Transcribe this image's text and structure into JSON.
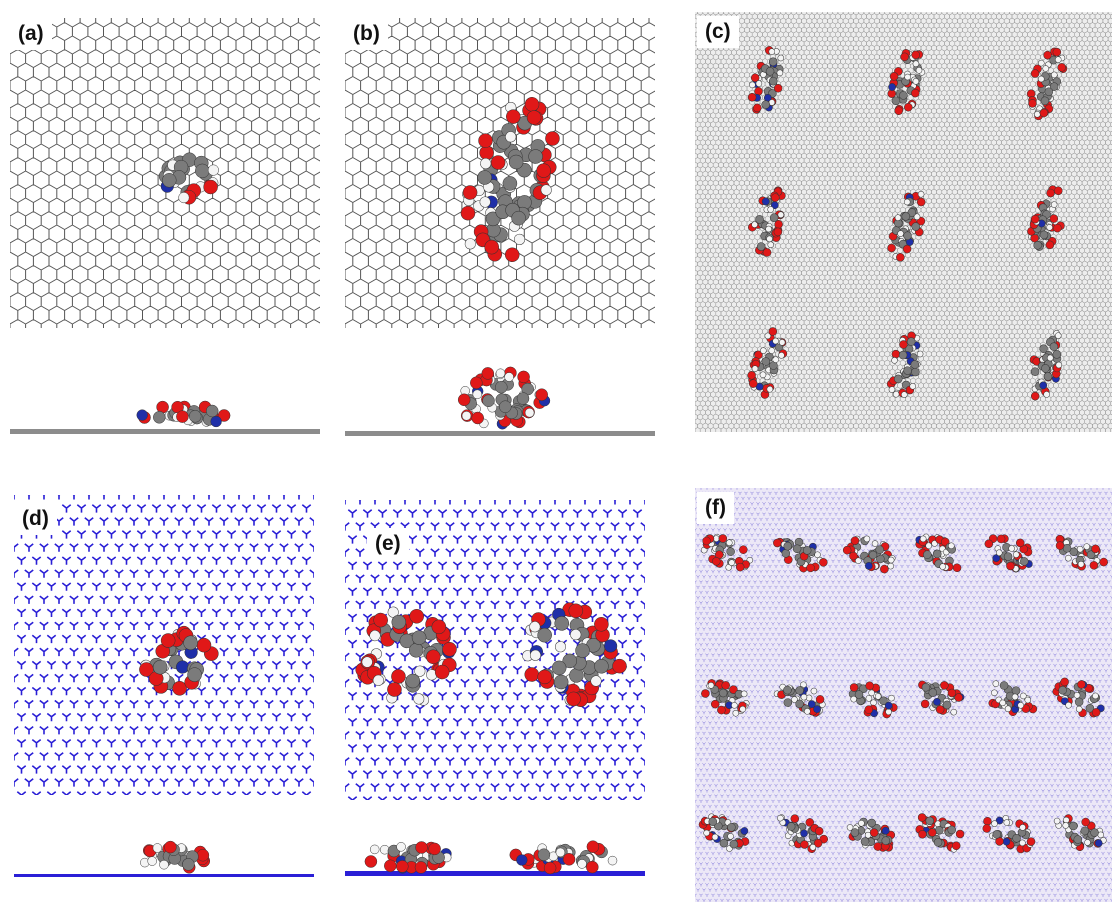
{
  "panels": {
    "a": {
      "label": "(a)"
    },
    "b": {
      "label": "(b)"
    },
    "c": {
      "label": "(c)"
    },
    "d": {
      "label": "(d)"
    },
    "e": {
      "label": "(e)"
    },
    "f": {
      "label": "(f)"
    }
  },
  "colors": {
    "graphene_bond": "#555555",
    "bn_lattice": "#2a1fd6",
    "bn_supercell_bg": "#ece8f7",
    "carbon_atom": "#7b7b7b",
    "oxygen_atom": "#e01818",
    "nitrogen_atom": "#1f2fa8",
    "hydrogen_atom": "#f4f4f4",
    "substrate_side": "#8c8c8c"
  }
}
